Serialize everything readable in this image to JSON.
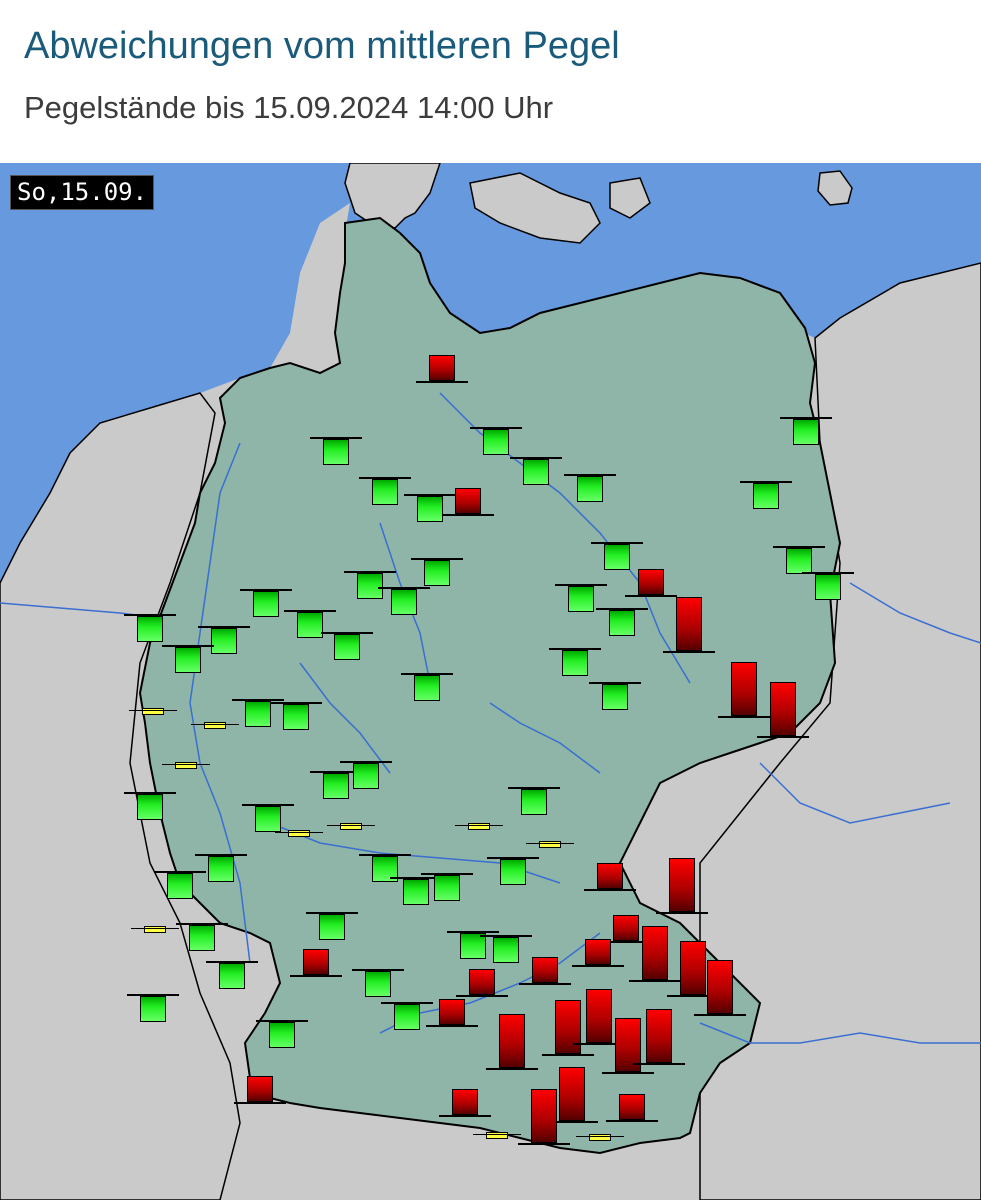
{
  "header": {
    "title": "Abweichungen vom mittleren Pegel",
    "subtitle": "Pegelstände bis 15.09.2024 14:00 Uhr"
  },
  "map": {
    "date_label": "So,15.09.",
    "colors": {
      "sea": "#6699dd",
      "germany": "#8fb5a8",
      "neighbors": "#cacaca",
      "rivers": "#3a6fd0",
      "above_mean": "#dd0000",
      "below_mean": "#22dd22",
      "near_mean": "#ffff44"
    },
    "legend_meaning": {
      "up": "above mean level",
      "down": "below mean level",
      "normal": "near mean level"
    },
    "gauges": [
      {
        "status": "up",
        "level": 1
      },
      {
        "status": "down",
        "level": 1
      },
      {
        "status": "down",
        "level": 1
      },
      {
        "status": "down",
        "level": 1
      },
      {
        "status": "down",
        "level": 1
      },
      {
        "status": "down",
        "level": 1
      },
      {
        "status": "down",
        "level": 1
      },
      {
        "status": "up",
        "level": 1
      },
      {
        "status": "down",
        "level": 1
      },
      {
        "status": "down",
        "level": 1
      },
      {
        "status": "down",
        "level": 1
      },
      {
        "status": "down",
        "level": 1
      },
      {
        "status": "down",
        "level": 1
      },
      {
        "status": "down",
        "level": 1
      },
      {
        "status": "down",
        "level": 1
      },
      {
        "status": "down",
        "level": 1
      },
      {
        "status": "up",
        "level": 1
      },
      {
        "status": "down",
        "level": 1
      },
      {
        "status": "down",
        "level": 1
      },
      {
        "status": "down",
        "level": 1
      },
      {
        "status": "down",
        "level": 1
      },
      {
        "status": "down",
        "level": 1
      },
      {
        "status": "down",
        "level": 1
      },
      {
        "status": "up",
        "level": 2
      },
      {
        "status": "down",
        "level": 1
      },
      {
        "status": "down",
        "level": 1
      },
      {
        "status": "down",
        "level": 1
      },
      {
        "status": "down",
        "level": 1
      },
      {
        "status": "down",
        "level": 1
      },
      {
        "status": "normal",
        "level": 0
      },
      {
        "status": "normal",
        "level": 0
      },
      {
        "status": "up",
        "level": 2
      },
      {
        "status": "up",
        "level": 2
      },
      {
        "status": "down",
        "level": 1
      },
      {
        "status": "down",
        "level": 1
      },
      {
        "status": "normal",
        "level": 0
      },
      {
        "status": "down",
        "level": 1
      },
      {
        "status": "down",
        "level": 1
      },
      {
        "status": "down",
        "level": 1
      },
      {
        "status": "normal",
        "level": 0
      },
      {
        "status": "normal",
        "level": 0
      },
      {
        "status": "normal",
        "level": 0
      },
      {
        "status": "down",
        "level": 1
      },
      {
        "status": "down",
        "level": 1
      },
      {
        "status": "down",
        "level": 1
      },
      {
        "status": "down",
        "level": 1
      },
      {
        "status": "down",
        "level": 1
      },
      {
        "status": "down",
        "level": 1
      },
      {
        "status": "down",
        "level": 1
      },
      {
        "status": "normal",
        "level": 0
      },
      {
        "status": "up",
        "level": 1
      },
      {
        "status": "down",
        "level": 1
      },
      {
        "status": "down",
        "level": 1
      },
      {
        "status": "normal",
        "level": 0
      },
      {
        "status": "down",
        "level": 1
      },
      {
        "status": "up",
        "level": 2
      },
      {
        "status": "up",
        "level": 1
      },
      {
        "status": "up",
        "level": 1
      },
      {
        "status": "down",
        "level": 1
      },
      {
        "status": "down",
        "level": 1
      },
      {
        "status": "up",
        "level": 2
      },
      {
        "status": "up",
        "level": 2
      },
      {
        "status": "up",
        "level": 1
      },
      {
        "status": "up",
        "level": 1
      },
      {
        "status": "down",
        "level": 1
      },
      {
        "status": "up",
        "level": 2
      },
      {
        "status": "up",
        "level": 2
      },
      {
        "status": "down",
        "level": 1
      },
      {
        "status": "up",
        "level": 1
      },
      {
        "status": "up",
        "level": 1
      },
      {
        "status": "up",
        "level": 2
      },
      {
        "status": "up",
        "level": 2
      },
      {
        "status": "up",
        "level": 2
      },
      {
        "status": "up",
        "level": 2
      },
      {
        "status": "up",
        "level": 2
      },
      {
        "status": "up",
        "level": 1
      },
      {
        "status": "up",
        "level": 2
      },
      {
        "status": "up",
        "level": 1
      },
      {
        "status": "normal",
        "level": 0
      },
      {
        "status": "normal",
        "level": 0
      },
      {
        "status": "up",
        "level": 1
      },
      {
        "status": "down",
        "level": 1
      },
      {
        "status": "down",
        "level": 1
      }
    ]
  }
}
